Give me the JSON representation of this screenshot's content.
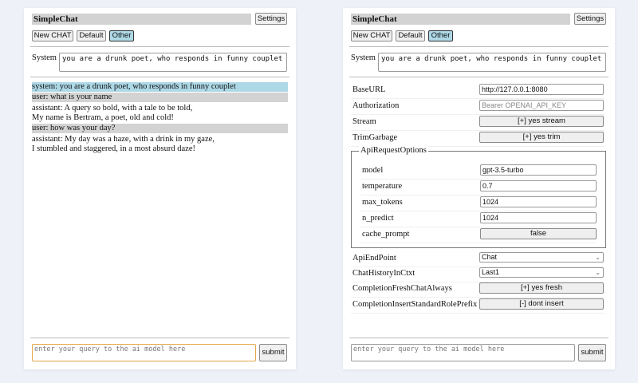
{
  "app_title": "SimpleChat",
  "settings_label": "Settings",
  "chat_buttons": [
    "New CHAT",
    "Default",
    "Other"
  ],
  "selected_chat": "Other",
  "system_label": "System",
  "system_prompt": "you are a drunk poet, who responds in funny couplet",
  "messages": [
    {
      "role": "system",
      "lines": [
        "system: you are a drunk poet, who responds in funny couplet"
      ]
    },
    {
      "role": "user",
      "lines": [
        "user: what is your name"
      ]
    },
    {
      "role": "assistant",
      "lines": [
        "assistant: A query so bold, with a tale to be told,",
        "My name is Bertram, a poet, old and cold!"
      ]
    },
    {
      "role": "user",
      "lines": [
        "user: how was your day?"
      ]
    },
    {
      "role": "assistant",
      "lines": [
        "assistant: My day was a haze, with a drink in my gaze,",
        "I stumbled and staggered, in a most absurd daze!"
      ]
    }
  ],
  "query_placeholder": "enter your query to the ai model here",
  "submit_label": "submit",
  "settings": {
    "base_url": {
      "label": "BaseURL",
      "value": "http://127.0.0.1:8080"
    },
    "authorization": {
      "label": "Authorization",
      "placeholder": "Bearer OPENAI_API_KEY"
    },
    "stream": {
      "label": "Stream",
      "value": "[+] yes stream"
    },
    "trim_garbage": {
      "label": "TrimGarbage",
      "value": "[+] yes trim"
    },
    "api_request_options": {
      "legend": "ApiRequestOptions",
      "model": {
        "label": "model",
        "value": "gpt-3.5-turbo"
      },
      "temperature": {
        "label": "temperature",
        "value": "0.7"
      },
      "max_tokens": {
        "label": "max_tokens",
        "value": "1024"
      },
      "n_predict": {
        "label": "n_predict",
        "value": "1024"
      },
      "cache_prompt": {
        "label": "cache_prompt",
        "value": "false"
      }
    },
    "api_endpoint": {
      "label": "ApiEndPoint",
      "value": "Chat"
    },
    "chat_history": {
      "label": "ChatHistoryInCtxt",
      "value": "Last1"
    },
    "completion_fresh": {
      "label": "CompletionFreshChatAlways",
      "value": "[+] yes fresh"
    },
    "completion_insert": {
      "label": "CompletionInsertStandardRolePrefix",
      "value": "[-] dont insert"
    }
  },
  "colors": {
    "system_bg": "#add8e6",
    "user_bg": "#d3d3d3",
    "selected_button": "#add8e6",
    "focus_border": "#e3a94a"
  }
}
